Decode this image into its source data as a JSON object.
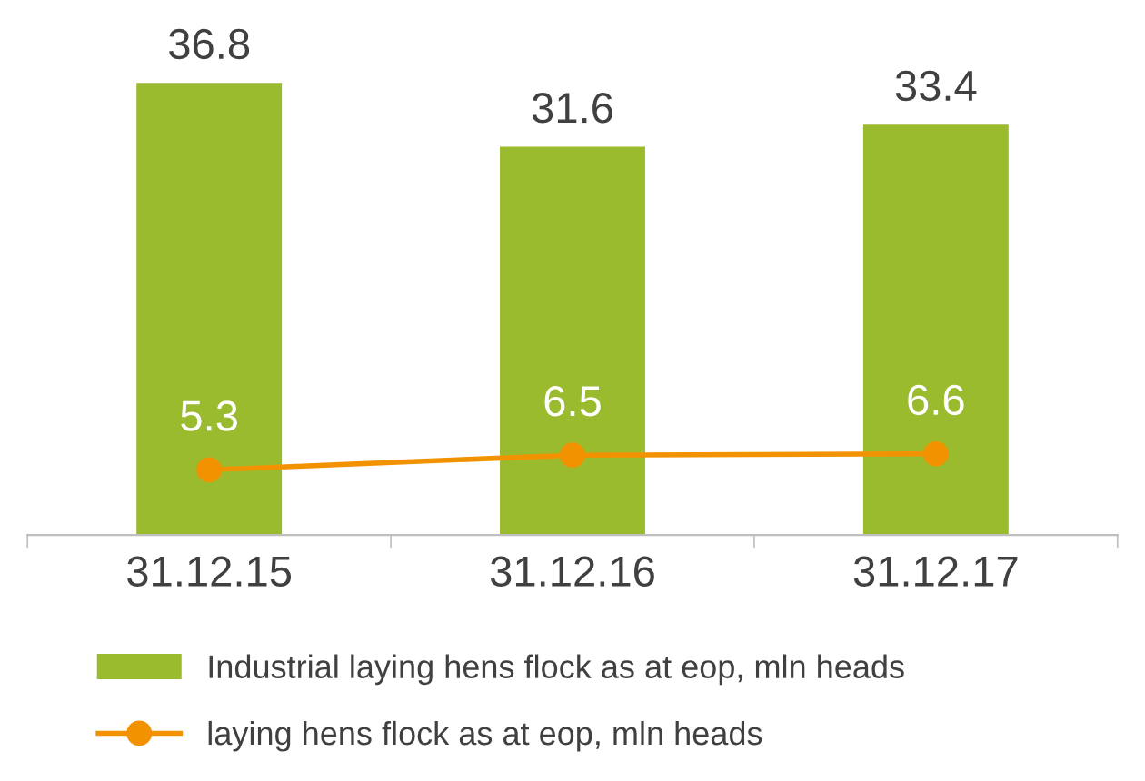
{
  "chart_data": {
    "type": "bar",
    "categories": [
      "31.12.15",
      "31.12.16",
      "31.12.17"
    ],
    "series": [
      {
        "name": "Industrial laying hens flock as at eop, mln heads",
        "color": "#9bbb2f",
        "values": [
          36.8,
          31.6,
          33.4
        ]
      },
      {
        "name": "laying hens flock as at eop, mln heads",
        "type": "line",
        "color": "#f39200",
        "values": [
          5.3,
          6.5,
          6.6
        ],
        "marker": "circle"
      }
    ],
    "data_labels": true,
    "legend": "bottom",
    "grid": false
  }
}
